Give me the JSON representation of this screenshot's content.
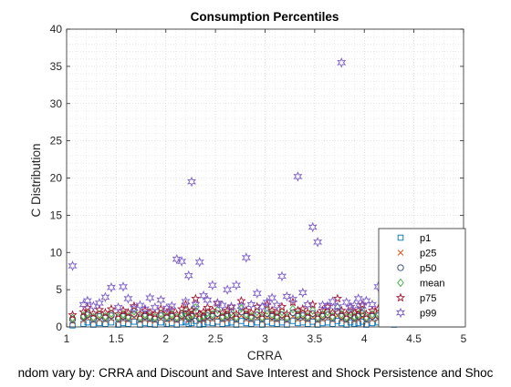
{
  "chart_data": {
    "type": "scatter",
    "title": "Consumption Percentiles",
    "xlabel": "CRRA",
    "ylabel": "C Distribution",
    "caption": "ndom vary by: CRRA and Discount and Save Interest and Shock Persistence and Shoc",
    "xlim": [
      1,
      5
    ],
    "ylim": [
      0,
      40
    ],
    "xticks": [
      1,
      1.5,
      2,
      2.5,
      3,
      3.5,
      4,
      4.5,
      5
    ],
    "xtick_labels": [
      "1",
      "1.5",
      "2",
      "2.5",
      "3",
      "3.5",
      "4",
      "4.5",
      "5"
    ],
    "yticks": [
      0,
      5,
      10,
      15,
      20,
      25,
      30,
      35,
      40
    ],
    "ytick_labels": [
      "0",
      "5",
      "10",
      "15",
      "20",
      "25",
      "30",
      "35",
      "40"
    ],
    "grid": "major and minor dotted",
    "legend_position": "bottom-right, inside",
    "x": [
      1.06,
      1.17,
      1.21,
      1.27,
      1.33,
      1.39,
      1.45,
      1.52,
      1.57,
      1.62,
      1.68,
      1.74,
      1.79,
      1.84,
      1.89,
      1.95,
      2.01,
      2.06,
      2.11,
      2.16,
      2.2,
      2.23,
      2.26,
      2.3,
      2.34,
      2.38,
      2.42,
      2.47,
      2.52,
      2.57,
      2.62,
      2.66,
      2.71,
      2.76,
      2.81,
      2.86,
      2.92,
      2.97,
      3.02,
      3.07,
      3.12,
      3.17,
      3.22,
      3.28,
      3.33,
      3.38,
      3.43,
      3.48,
      3.53,
      3.58,
      3.63,
      3.68,
      3.73,
      3.77,
      3.82,
      3.86,
      3.9,
      3.94,
      3.98,
      4.02,
      4.08,
      4.14,
      4.2,
      4.25,
      4.3,
      4.35,
      4.41,
      4.46,
      4.52,
      4.57,
      4.63,
      4.68,
      4.74,
      4.8,
      4.86,
      4.92,
      4.97
    ],
    "series": [
      {
        "name": "p1",
        "marker": "square",
        "color": "#0072bd",
        "values": [
          0.2,
          0.4,
          0.6,
          0.3,
          0.5,
          0.4,
          0.6,
          0.3,
          0.5,
          0.4,
          0.7,
          0.3,
          0.5,
          0.4,
          0.3,
          0.6,
          0.4,
          0.5,
          0.3,
          0.6,
          0.7,
          0.4,
          0.5,
          0.8,
          0.3,
          0.4,
          0.6,
          0.5,
          0.7,
          0.4,
          0.5,
          0.6,
          0.3,
          0.8,
          0.5,
          0.4,
          0.6,
          0.3,
          0.7,
          0.5,
          0.4,
          0.6,
          0.3,
          0.8,
          0.5,
          0.6,
          0.4,
          0.7,
          0.3,
          0.5,
          0.6,
          0.4,
          0.8,
          0.5,
          0.3,
          0.6,
          0.4,
          0.5,
          0.7,
          0.3,
          0.5,
          0.6,
          0.4,
          0.5,
          0.3,
          0.6,
          0.5,
          0.4,
          0.7,
          0.5,
          0.4,
          0.6,
          0.5,
          0.8,
          0.6,
          0.7,
          0.9
        ]
      },
      {
        "name": "p25",
        "marker": "x",
        "color": "#d95319",
        "values": [
          0.7,
          0.9,
          1.2,
          0.8,
          1.0,
          0.9,
          1.1,
          0.8,
          1.0,
          0.9,
          1.3,
          0.8,
          1.0,
          0.9,
          0.8,
          1.1,
          0.9,
          1.0,
          0.8,
          1.1,
          1.3,
          0.9,
          1.0,
          1.5,
          0.8,
          0.9,
          1.1,
          1.0,
          1.3,
          0.9,
          1.0,
          1.2,
          0.8,
          1.5,
          1.0,
          0.9,
          1.2,
          0.8,
          1.3,
          1.0,
          0.9,
          1.2,
          0.8,
          1.4,
          1.0,
          1.1,
          0.9,
          1.3,
          0.8,
          1.0,
          1.2,
          0.9,
          1.5,
          1.0,
          0.8,
          1.2,
          0.9,
          1.0,
          1.3,
          0.8,
          1.0,
          1.1,
          0.9,
          1.0,
          0.8,
          1.1,
          1.0,
          0.9,
          1.3,
          1.0,
          0.9,
          1.1,
          1.0,
          1.4,
          1.1,
          1.2,
          1.5
        ]
      },
      {
        "name": "p50",
        "marker": "circle",
        "color": "#2c3e70",
        "values": [
          1.0,
          1.3,
          1.6,
          1.1,
          1.4,
          1.2,
          1.5,
          1.1,
          1.4,
          1.2,
          1.7,
          1.1,
          1.4,
          1.2,
          1.1,
          1.5,
          1.2,
          1.4,
          1.1,
          1.5,
          1.8,
          1.2,
          1.4,
          2.1,
          1.1,
          1.2,
          1.5,
          1.4,
          1.8,
          1.2,
          1.4,
          1.6,
          1.1,
          2.0,
          1.4,
          1.2,
          1.6,
          1.1,
          1.8,
          1.4,
          1.2,
          1.6,
          1.1,
          1.9,
          1.4,
          1.5,
          1.2,
          1.8,
          1.1,
          1.4,
          1.6,
          1.2,
          2.1,
          1.4,
          1.1,
          1.6,
          1.2,
          1.4,
          1.8,
          1.1,
          1.4,
          1.5,
          1.2,
          1.4,
          1.1,
          1.5,
          1.4,
          1.2,
          1.8,
          1.4,
          1.2,
          1.5,
          1.4,
          1.9,
          1.5,
          1.6,
          2.0
        ]
      },
      {
        "name": "mean",
        "marker": "diamond",
        "color": "#3caa3c",
        "values": [
          1.2,
          1.5,
          1.9,
          1.3,
          1.7,
          1.4,
          1.8,
          1.3,
          1.7,
          1.4,
          2.1,
          1.3,
          1.7,
          1.4,
          1.3,
          1.8,
          1.4,
          1.7,
          1.3,
          1.8,
          2.2,
          1.4,
          1.7,
          2.6,
          1.3,
          1.5,
          1.9,
          1.7,
          2.3,
          1.4,
          1.7,
          2.0,
          1.3,
          2.5,
          1.7,
          1.4,
          2.0,
          1.3,
          2.2,
          1.7,
          1.4,
          2.0,
          1.3,
          2.4,
          1.7,
          1.8,
          1.4,
          2.2,
          1.3,
          1.7,
          2.0,
          1.4,
          2.6,
          1.7,
          1.3,
          2.0,
          1.4,
          1.7,
          2.2,
          1.3,
          1.7,
          1.8,
          1.4,
          1.7,
          1.3,
          1.8,
          1.7,
          1.4,
          2.2,
          1.7,
          1.4,
          1.8,
          1.7,
          2.4,
          1.8,
          2.0,
          3.4
        ]
      },
      {
        "name": "p75",
        "marker": "star",
        "color": "#a2142f",
        "values": [
          1.6,
          2.0,
          2.6,
          1.8,
          2.3,
          1.9,
          2.4,
          1.7,
          2.2,
          1.9,
          2.8,
          1.7,
          2.2,
          1.9,
          1.7,
          2.4,
          1.9,
          2.2,
          1.7,
          2.4,
          3.0,
          1.9,
          2.2,
          3.8,
          1.7,
          2.0,
          2.6,
          2.2,
          3.2,
          1.9,
          2.2,
          2.7,
          1.7,
          3.5,
          2.2,
          1.9,
          2.7,
          1.7,
          3.0,
          2.2,
          1.9,
          2.7,
          1.7,
          3.3,
          2.2,
          2.4,
          1.9,
          3.0,
          1.7,
          2.2,
          2.7,
          1.9,
          3.8,
          2.2,
          1.7,
          2.7,
          1.9,
          2.2,
          3.0,
          1.7,
          2.2,
          2.4,
          1.9,
          2.2,
          1.7,
          2.4,
          2.2,
          1.9,
          3.0,
          2.2,
          1.9,
          2.4,
          2.2,
          3.3,
          2.4,
          2.7,
          3.5
        ]
      },
      {
        "name": "p99",
        "marker": "hexagram",
        "color": "#7e5fc8",
        "values": [
          8.2,
          3.0,
          3.5,
          2.8,
          3.2,
          4.0,
          5.3,
          2.6,
          5.4,
          3.8,
          2.5,
          2.9,
          2.4,
          3.9,
          2.6,
          3.6,
          2.5,
          2.8,
          9.1,
          8.8,
          3.4,
          6.9,
          19.5,
          3.0,
          8.7,
          4.2,
          3.6,
          5.6,
          3.2,
          2.9,
          5.0,
          2.7,
          5.6,
          2.8,
          9.3,
          3.0,
          4.5,
          2.7,
          3.3,
          3.9,
          2.9,
          6.8,
          4.1,
          3.7,
          20.2,
          4.6,
          3.0,
          13.4,
          11.4,
          2.9,
          2.8,
          3.4,
          2.7,
          35.5,
          3.3,
          2.6,
          2.9,
          3.8,
          2.8,
          3.5,
          3.0,
          5.4,
          2.7,
          2.5,
          2.6,
          4.4,
          3.2,
          2.9,
          3.4,
          2.6,
          3.0,
          2.4,
          3.6,
          2.7,
          2.9,
          3.1,
          5.4
        ]
      }
    ]
  }
}
